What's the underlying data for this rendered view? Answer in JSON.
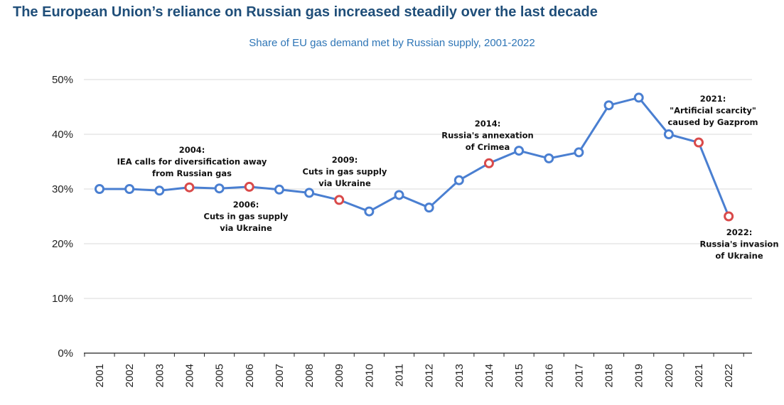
{
  "title": "The European Union’s reliance on Russian gas increased steadily over the last decade",
  "subtitle": "Share of EU gas demand met by Russian supply, 2001-2022",
  "colors": {
    "line": "#4a7fd1",
    "marker_normal": "#4a7fd1",
    "marker_event": "#d94a4a",
    "grid": "#d9d9d9",
    "title": "#1f4e79",
    "subtitle": "#2e75b6"
  },
  "chart_data": {
    "type": "line",
    "x": [
      "2001",
      "2002",
      "2003",
      "2004",
      "2005",
      "2006",
      "2007",
      "2008",
      "2009",
      "2010",
      "2011",
      "2012",
      "2013",
      "2014",
      "2015",
      "2016",
      "2017",
      "2018",
      "2019",
      "2020",
      "2021",
      "2022"
    ],
    "series": [
      {
        "values": [
          30.0,
          30.0,
          29.7,
          30.3,
          30.1,
          30.4,
          29.9,
          29.3,
          28.0,
          25.9,
          28.9,
          26.6,
          31.6,
          34.7,
          37.0,
          35.6,
          36.7,
          45.3,
          46.7,
          40.0,
          38.5,
          25.0
        ]
      }
    ],
    "event_years": [
      "2004",
      "2006",
      "2009",
      "2014",
      "2021",
      "2022"
    ],
    "ylim": [
      0,
      50
    ],
    "yticks": [
      0,
      10,
      20,
      30,
      40,
      50
    ],
    "ytick_labels": [
      "0%",
      "10%",
      "20%",
      "30%",
      "40%",
      "50%"
    ],
    "grid": true,
    "legend": "none",
    "annotations": [
      {
        "id": "a2004",
        "year": "2004",
        "lines": [
          "2004:",
          "IEA calls for diversification away",
          "from Russian gas"
        ]
      },
      {
        "id": "a2006",
        "year": "2006",
        "lines": [
          "2006:",
          "Cuts in gas supply",
          "via Ukraine"
        ]
      },
      {
        "id": "a2009",
        "year": "2009",
        "lines": [
          "2009:",
          "Cuts in gas supply",
          "via Ukraine"
        ]
      },
      {
        "id": "a2014",
        "year": "2014",
        "lines": [
          "2014:",
          "Russia's annexation",
          "of Crimea"
        ]
      },
      {
        "id": "a2021",
        "year": "2021",
        "lines": [
          "2021:",
          "\"Artificial scarcity\"",
          "caused by Gazprom"
        ]
      },
      {
        "id": "a2022",
        "year": "2022",
        "lines": [
          "2022:",
          "Russia's invasion",
          "of Ukraine"
        ]
      }
    ]
  }
}
